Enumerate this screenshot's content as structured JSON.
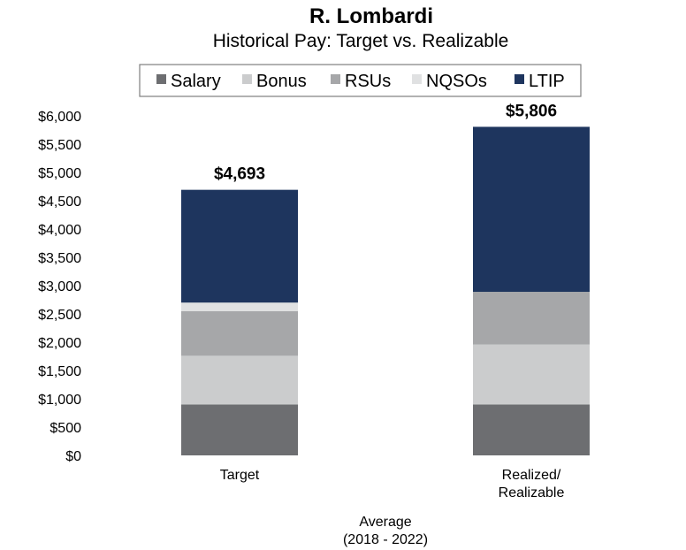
{
  "chart_data": {
    "type": "bar",
    "stacked": true,
    "title": "R. Lombardi",
    "subtitle": "Historical Pay: Target vs. Realizable",
    "xlabel_lines": [
      "Average",
      "(2018 - 2022)"
    ],
    "ylabel": "",
    "ylim": [
      0,
      6000
    ],
    "y_ticks": [
      0,
      500,
      1000,
      1500,
      2000,
      2500,
      3000,
      3500,
      4000,
      4500,
      5000,
      5500,
      6000
    ],
    "y_tick_labels": [
      "$0",
      "$500",
      "$1,000",
      "$1,500",
      "$2,000",
      "$2,500",
      "$3,000",
      "$3,500",
      "$4,000",
      "$4,500",
      "$5,000",
      "$5,500",
      "$6,000"
    ],
    "grid": false,
    "legend_position": "top",
    "categories": [
      {
        "lines": [
          "Target"
        ]
      },
      {
        "lines": [
          "Realized/",
          "Realizable"
        ]
      }
    ],
    "totals": [
      4693,
      5806
    ],
    "total_labels": [
      "$4,693",
      "$5,806"
    ],
    "series": [
      {
        "name": "Salary",
        "color": "#6d6e71",
        "values": [
          900,
          900
        ]
      },
      {
        "name": "Bonus",
        "color": "#cbcccd",
        "values": [
          860,
          1060
        ]
      },
      {
        "name": "RSUs",
        "color": "#a6a7a9",
        "values": [
          790,
          930
        ]
      },
      {
        "name": "NQSOs",
        "color": "#e0e1e2",
        "values": [
          150,
          0
        ]
      },
      {
        "name": "LTIP",
        "color": "#1e355e",
        "values": [
          1993,
          2916
        ]
      }
    ]
  }
}
